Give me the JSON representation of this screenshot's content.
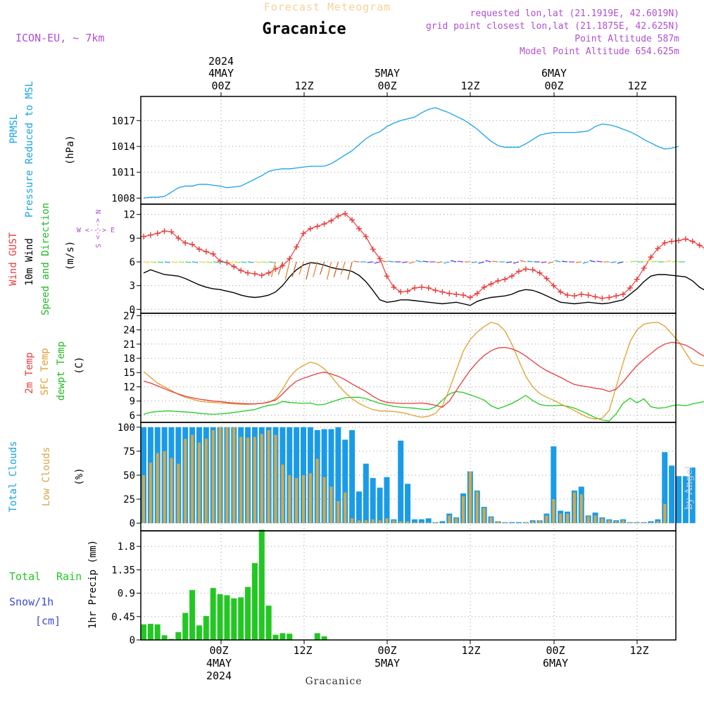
{
  "header": {
    "top_title": "Forecast Meteogram",
    "model": "ICON-EU, ~ 7km",
    "location": "Gracanice",
    "requested": "requested lon,lat (21.1919E, 42.6019N)",
    "closest": "grid point closest lon,lat (21.1875E, 42.625N)",
    "point_alt": "Point Altitude 587m",
    "model_alt": "Model Point Altitude 654.625m",
    "footer_location": "Gracanice",
    "watermark": "by Angel"
  },
  "time_axis": {
    "year_top": "2024",
    "day1_top": "4MAY",
    "day2_top": "5MAY",
    "day3_top": "6MAY",
    "t_00z": "00Z",
    "t_12z": "12Z",
    "day1_bottom": "4MAY",
    "day2_bottom": "5MAY",
    "day3_bottom": "6MAY",
    "year_bottom": "2024"
  },
  "panel_labels": {
    "pressure": [
      "PRMSL",
      "Pressure Reduced to MSL"
    ],
    "pressure_unit": "(hPa)",
    "wind": [
      "Wind GUST",
      "10m Wind",
      "Speed and Direction"
    ],
    "wind_unit": "(m/s)",
    "compass_ns": "N <---> S",
    "compass_we": "W <---> E",
    "temp": [
      "2m Temp",
      "SFC Temp",
      "dewpt Temp"
    ],
    "temp_unit": "(C)",
    "clouds": [
      "Total Clouds",
      "Low Clouds"
    ],
    "clouds_unit": "(%)",
    "rain_total": "Total",
    "rain_rain": "Rain",
    "rain_snow": "Snow/1h",
    "rain_snow_unit": "[cm]",
    "rain_axis": "1hr Precip (mm)"
  },
  "colors": {
    "pressure": "#1aa3e8",
    "gust": "#e83c3c",
    "wind": "#000000",
    "t2m": "#e83c3c",
    "tsfc": "#e0a030",
    "dewpt": "#22cc22",
    "total_clouds": "#1a9be8",
    "low_clouds": "#d4a84a",
    "rain": "#22c822",
    "snow": "#3a4ad8",
    "label_purple": "#b050d0"
  },
  "chart_data": [
    {
      "type": "line",
      "title": "PRMSL Pressure Reduced to MSL",
      "ylabel": "(hPa)",
      "x_start": "2024-05-03T15Z",
      "x_step_hours": 1,
      "ylim": [
        1007.3,
        1019.8
      ],
      "yticks": [
        1008,
        1011,
        1014,
        1017
      ],
      "series": [
        {
          "name": "PRMSL",
          "values": [
            1008.0,
            1008.1,
            1008.1,
            1008.2,
            1008.7,
            1009.2,
            1009.4,
            1009.4,
            1009.6,
            1009.6,
            1009.5,
            1009.4,
            1009.2,
            1009.3,
            1009.4,
            1009.8,
            1010.2,
            1010.6,
            1011.1,
            1011.3,
            1011.4,
            1011.4,
            1011.5,
            1011.6,
            1011.7,
            1011.7,
            1011.7,
            1012.0,
            1012.5,
            1013.0,
            1013.5,
            1014.2,
            1014.9,
            1015.4,
            1015.7,
            1016.3,
            1016.7,
            1017.0,
            1017.2,
            1017.4,
            1017.9,
            1018.3,
            1018.5,
            1018.2,
            1017.9,
            1017.5,
            1017.1,
            1016.6,
            1016.0,
            1015.3,
            1014.6,
            1014.1,
            1013.9,
            1013.9,
            1013.9,
            1014.3,
            1014.8,
            1015.3,
            1015.5,
            1015.6,
            1015.6,
            1015.6,
            1015.6,
            1015.7,
            1015.8,
            1016.3,
            1016.6,
            1016.5,
            1016.3,
            1016.0,
            1015.7,
            1015.3,
            1014.8,
            1014.4,
            1014.0,
            1013.7,
            1013.8,
            1014.0
          ]
        }
      ]
    },
    {
      "type": "line",
      "title": "Wind GUST / 10m Wind Speed and Direction",
      "ylabel": "(m/s)",
      "x_start": "2024-05-03T15Z",
      "x_step_hours": 1,
      "ylim": [
        -0.5,
        13.3
      ],
      "yticks": [
        0,
        3,
        6,
        9,
        12
      ],
      "series": [
        {
          "name": "Wind GUST",
          "values": [
            9.2,
            9.4,
            9.6,
            9.9,
            9.8,
            9.0,
            8.4,
            8.2,
            7.6,
            7.3,
            7.0,
            6.1,
            5.9,
            5.4,
            4.9,
            4.6,
            4.5,
            4.3,
            4.6,
            5.1,
            5.5,
            6.4,
            7.9,
            9.6,
            10.2,
            10.5,
            10.8,
            11.2,
            11.8,
            12.1,
            11.3,
            10.2,
            9.2,
            7.6,
            6.4,
            4.2,
            2.8,
            2.2,
            2.3,
            2.7,
            2.8,
            2.7,
            2.4,
            2.2,
            2.0,
            1.9,
            1.8,
            1.5,
            2.0,
            2.8,
            3.2,
            3.6,
            3.8,
            4.2,
            4.8,
            5.1,
            5.0,
            4.6,
            3.9,
            3.0,
            2.2,
            1.8,
            1.7,
            1.9,
            1.8,
            1.6,
            1.4,
            1.5,
            1.7,
            1.9,
            2.7,
            3.8,
            5.2,
            6.6,
            7.7,
            8.4,
            8.6,
            8.7,
            8.9,
            8.6,
            8.1,
            7.6
          ]
        },
        {
          "name": "10m Wind",
          "values": [
            4.6,
            5.0,
            4.7,
            4.4,
            4.3,
            4.2,
            3.9,
            3.5,
            3.1,
            2.8,
            2.6,
            2.5,
            2.3,
            2.1,
            1.8,
            1.6,
            1.5,
            1.6,
            1.8,
            2.2,
            3.0,
            4.1,
            5.0,
            5.6,
            5.9,
            5.8,
            5.6,
            5.3,
            5.1,
            5.0,
            4.8,
            4.3,
            3.5,
            2.4,
            1.2,
            0.9,
            1.0,
            1.2,
            1.2,
            1.1,
            1.0,
            0.9,
            0.8,
            0.7,
            0.8,
            0.9,
            0.7,
            0.5,
            1.0,
            1.3,
            1.5,
            1.6,
            1.7,
            1.9,
            2.3,
            2.5,
            2.4,
            2.1,
            1.7,
            1.3,
            0.9,
            0.8,
            0.7,
            0.8,
            0.9,
            0.8,
            0.7,
            0.8,
            1.0,
            1.2,
            1.9,
            2.6,
            3.5,
            4.2,
            4.4,
            4.4,
            4.3,
            4.2,
            4.1,
            3.6,
            2.8,
            2.3
          ]
        }
      ]
    },
    {
      "type": "line",
      "title": "2m Temp / SFC Temp / dewpt Temp",
      "ylabel": "(C)",
      "x_start": "2024-05-03T15Z",
      "x_step_hours": 1,
      "ylim": [
        4.5,
        27.5
      ],
      "yticks": [
        6,
        9,
        12,
        15,
        18,
        21,
        24,
        27
      ],
      "series": [
        {
          "name": "2m Temp",
          "values": [
            13.2,
            12.8,
            12.2,
            11.6,
            11.0,
            10.5,
            10.0,
            9.7,
            9.4,
            9.2,
            9.0,
            8.9,
            8.7,
            8.6,
            8.5,
            8.4,
            8.4,
            8.5,
            8.8,
            9.2,
            10.5,
            12.0,
            13.2,
            13.8,
            14.3,
            14.8,
            15.1,
            14.7,
            14.2,
            13.5,
            12.6,
            11.8,
            11.0,
            10.0,
            9.2,
            8.7,
            8.6,
            8.5,
            8.5,
            8.5,
            8.6,
            8.4,
            8.1,
            7.7,
            9.0,
            11.2,
            13.4,
            15.5,
            17.2,
            18.6,
            19.6,
            20.2,
            20.3,
            20.0,
            19.4,
            18.5,
            17.4,
            16.3,
            15.4,
            14.7,
            14.0,
            13.2,
            12.5,
            12.2,
            12.0,
            11.7,
            11.5,
            11.0,
            11.5,
            13.0,
            14.8,
            16.5,
            17.8,
            19.0,
            20.2,
            21.0,
            21.4,
            21.2,
            20.8,
            20.0,
            19.0,
            18.2
          ]
        },
        {
          "name": "SFC Temp",
          "values": [
            15.2,
            14.0,
            12.8,
            12.0,
            11.2,
            10.4,
            9.8,
            9.4,
            9.0,
            8.8,
            8.7,
            8.6,
            8.5,
            8.4,
            8.3,
            8.3,
            8.4,
            8.5,
            8.7,
            9.5,
            11.5,
            14.0,
            15.6,
            16.5,
            17.2,
            16.8,
            15.8,
            14.2,
            12.4,
            10.8,
            9.5,
            8.5,
            7.8,
            7.2,
            6.9,
            6.9,
            6.8,
            6.6,
            6.3,
            5.9,
            5.6,
            5.8,
            6.4,
            8.0,
            11.5,
            15.5,
            19.5,
            22.0,
            23.5,
            24.7,
            25.6,
            25.2,
            23.8,
            21.0,
            17.5,
            14.2,
            12.0,
            10.6,
            9.8,
            9.2,
            8.4,
            7.7,
            7.0,
            6.2,
            5.5,
            5.2,
            5.4,
            7.0,
            12.0,
            17.0,
            21.5,
            24.0,
            25.2,
            25.5,
            25.6,
            24.8,
            23.2,
            21.5,
            19.2,
            17.0,
            16.5,
            16.4
          ]
        },
        {
          "name": "dewpt Temp",
          "values": [
            6.2,
            6.6,
            6.8,
            6.9,
            6.9,
            6.8,
            6.7,
            6.6,
            6.4,
            6.3,
            6.2,
            6.3,
            6.4,
            6.6,
            6.8,
            7.0,
            7.2,
            7.7,
            8.1,
            8.3,
            8.9,
            8.7,
            8.6,
            8.5,
            8.6,
            8.2,
            8.3,
            8.8,
            9.3,
            9.7,
            9.8,
            9.8,
            9.5,
            9.0,
            8.5,
            8.2,
            7.9,
            7.7,
            7.6,
            7.5,
            7.3,
            7.2,
            7.8,
            9.2,
            10.5,
            11.0,
            10.8,
            10.3,
            9.8,
            9.2,
            8.0,
            7.4,
            7.9,
            8.5,
            9.3,
            10.2,
            9.1,
            8.3,
            8.0,
            8.0,
            8.1,
            7.9,
            7.5,
            6.9,
            6.2,
            5.5,
            5.0,
            4.8,
            6.3,
            8.5,
            9.6,
            8.6,
            9.5,
            7.8,
            7.5,
            7.6,
            8.0,
            8.2,
            8.0,
            8.4,
            8.7,
            9.0
          ]
        }
      ]
    },
    {
      "type": "bar",
      "title": "Total Clouds / Low Clouds",
      "ylabel": "(%)",
      "x_start": "2024-05-03T15Z",
      "x_step_hours": 1,
      "ylim": [
        -8,
        105
      ],
      "yticks": [
        0,
        25,
        50,
        75,
        100
      ],
      "series": [
        {
          "name": "Total Clouds",
          "values": [
            100,
            100,
            100,
            100,
            100,
            100,
            100,
            100,
            100,
            100,
            100,
            100,
            100,
            100,
            100,
            100,
            100,
            100,
            100,
            100,
            100,
            100,
            100,
            100,
            100,
            97,
            98,
            98,
            100,
            87,
            97,
            33,
            62,
            47,
            37,
            48,
            4,
            86,
            41,
            4,
            4,
            5,
            1,
            2,
            10,
            6,
            31,
            54,
            34,
            17,
            7,
            2,
            1,
            1,
            1,
            1,
            3,
            3,
            10,
            80,
            13,
            12,
            34,
            38,
            8,
            11,
            6,
            4,
            3,
            4,
            1,
            1,
            1,
            2,
            4,
            74,
            60,
            49,
            49,
            58
          ]
        },
        {
          "name": "Low Clouds",
          "values": [
            50,
            63,
            73,
            75,
            68,
            62,
            88,
            92,
            84,
            88,
            97,
            100,
            100,
            100,
            90,
            89,
            90,
            93,
            97,
            92,
            61,
            50,
            47,
            50,
            52,
            67,
            48,
            38,
            23,
            32,
            5,
            3,
            3,
            4,
            3,
            5,
            3,
            2,
            2,
            1,
            1,
            1,
            1,
            0,
            8,
            5,
            28,
            54,
            33,
            16,
            6,
            2,
            1,
            0,
            0,
            1,
            2,
            3,
            8,
            25,
            10,
            10,
            32,
            30,
            7,
            8,
            5,
            3,
            2,
            3,
            1,
            1,
            1,
            1,
            2,
            20,
            0,
            0,
            0,
            0
          ]
        }
      ]
    },
    {
      "type": "bar",
      "title": "Total Rain / Snow 1h",
      "ylabel": "1hr Precip (mm)",
      "x_start": "2024-05-03T15Z",
      "x_step_hours": 1,
      "ylim": [
        0,
        2.1
      ],
      "yticks": [
        0,
        0.45,
        0.9,
        1.35,
        1.8
      ],
      "series": [
        {
          "name": "Total Rain",
          "values": [
            0.3,
            0.31,
            0.3,
            0.09,
            0.02,
            0.15,
            0.52,
            0.96,
            0.28,
            0.46,
            1.0,
            0.88,
            0.86,
            0.8,
            0.82,
            1.02,
            1.48,
            2.12,
            0.66,
            0.1,
            0.13,
            0.12,
            0,
            0,
            0,
            0.13,
            0.07
          ]
        }
      ]
    }
  ]
}
